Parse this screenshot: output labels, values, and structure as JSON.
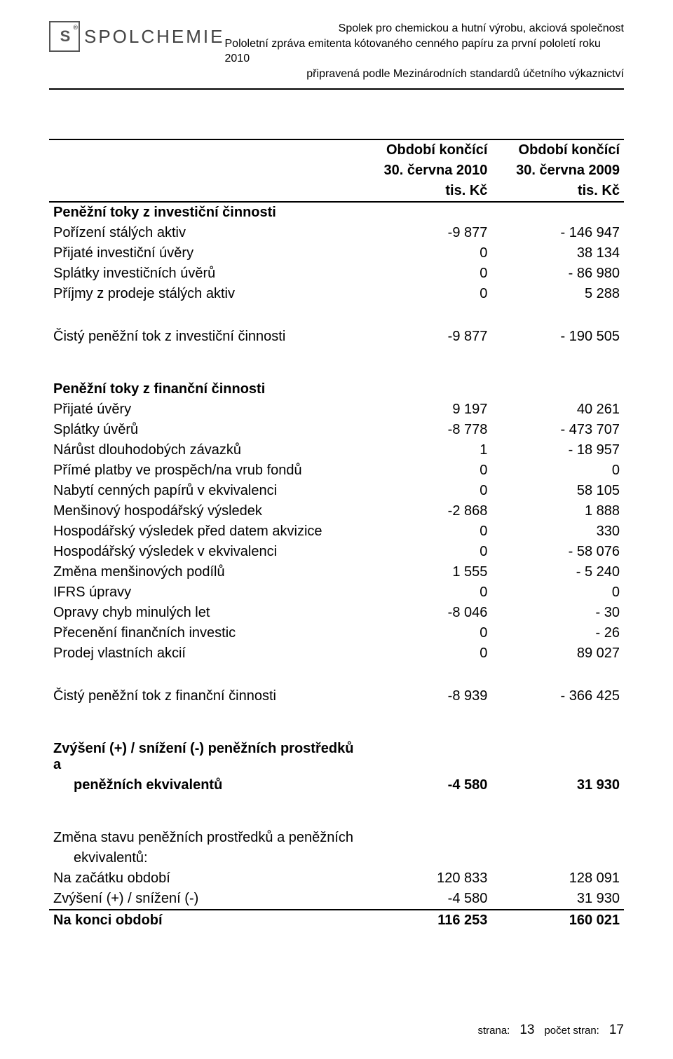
{
  "header": {
    "logo_initials": "S",
    "logo_text": "SPOLCHEMIE",
    "line1": "Spolek pro chemickou a hutní výrobu, akciová společnost",
    "line2": "Pololetní zpráva emitenta kótovaného cenného papíru za první pololetí roku 2010",
    "line3": "připravená podle Mezinárodních standardů účetního výkaznictví"
  },
  "table": {
    "col_head_top": "Období končící",
    "col1_sub": "30. června 2010",
    "col2_sub": "30. června 2009",
    "unit": "tis. Kč",
    "rows": [
      {
        "type": "head",
        "col1": "Období končící",
        "col2": "Období končící",
        "border": "top"
      },
      {
        "type": "head",
        "col1": "30. června 2010",
        "col2": "30. června 2009",
        "border": ""
      },
      {
        "type": "head",
        "col1": "tis. Kč",
        "col2": "tis. Kč",
        "border": "bottom"
      },
      {
        "type": "bold",
        "label": "Peněžní toky z investiční činnosti"
      },
      {
        "label": "Pořízení stálých aktiv",
        "c1": "-9 877",
        "c2": "- 146 947"
      },
      {
        "label": "Přijaté investiční úvěry",
        "c1": "0",
        "c2": "38 134"
      },
      {
        "label": "Splátky investičních úvěrů",
        "c1": "0",
        "c2": "- 86 980"
      },
      {
        "label": "Příjmy z prodeje stálých aktiv",
        "c1": "0",
        "c2": "5 288"
      },
      {
        "type": "spacer"
      },
      {
        "label": "Čistý peněžní tok z investiční činnosti",
        "c1": "-9 877",
        "c2": "- 190 505"
      },
      {
        "type": "bigspacer"
      },
      {
        "type": "bold",
        "label": "Peněžní toky z finanční činnosti"
      },
      {
        "label": "Přijaté úvěry",
        "c1": "9 197",
        "c2": "40 261"
      },
      {
        "label": "Splátky úvěrů",
        "c1": "-8 778",
        "c2": "- 473 707"
      },
      {
        "label": "Nárůst dlouhodobých závazků",
        "c1": "1",
        "c2": "- 18 957"
      },
      {
        "label": "Přímé platby ve prospěch/na vrub fondů",
        "c1": "0",
        "c2": "0"
      },
      {
        "label": "Nabytí cenných papírů v ekvivalenci",
        "c1": "0",
        "c2": "58 105"
      },
      {
        "label": "Menšinový hospodářský výsledek",
        "c1": "-2 868",
        "c2": "1 888"
      },
      {
        "label": "Hospodářský výsledek před datem akvizice",
        "c1": "0",
        "c2": "330"
      },
      {
        "label": "Hospodářský výsledek v ekvivalenci",
        "c1": "0",
        "c2": "- 58 076"
      },
      {
        "label": "Změna menšinových podílů",
        "c1": "1 555",
        "c2": "- 5 240"
      },
      {
        "label": "IFRS úpravy",
        "c1": "0",
        "c2": "0"
      },
      {
        "label": "Opravy chyb minulých let",
        "c1": "-8 046",
        "c2": "- 30"
      },
      {
        "label": "Přecenění finančních investic",
        "c1": "0",
        "c2": "- 26"
      },
      {
        "label": "Prodej vlastních akcií",
        "c1": "0",
        "c2": "89 027"
      },
      {
        "type": "spacer"
      },
      {
        "label": "Čistý peněžní tok z finanční činnosti",
        "c1": "-8 939",
        "c2": "- 366 425"
      },
      {
        "type": "bigspacer"
      },
      {
        "type": "bold2",
        "label1": "Zvýšení (+) / snížení (-) peněžních prostředků a",
        "label2": "peněžních ekvivalentů",
        "c1": "-4 580",
        "c2": "31 930"
      },
      {
        "type": "bigspacer"
      },
      {
        "type": "two",
        "label1": "Změna stavu peněžních prostředků a peněžních",
        "label2": "ekvivalentů:"
      },
      {
        "label": "Na začátku období",
        "c1": "120 833",
        "c2": "128 091"
      },
      {
        "label": "Zvýšení (+) / snížení (-)",
        "c1": "-4 580",
        "c2": "31 930",
        "border": "bottom"
      },
      {
        "type": "bold",
        "label": "Na konci období",
        "c1": "116 253",
        "c2": "160 021"
      }
    ]
  },
  "footer": {
    "label1": "strana:",
    "page": "13",
    "label2": "počet stran:",
    "total": "17"
  }
}
